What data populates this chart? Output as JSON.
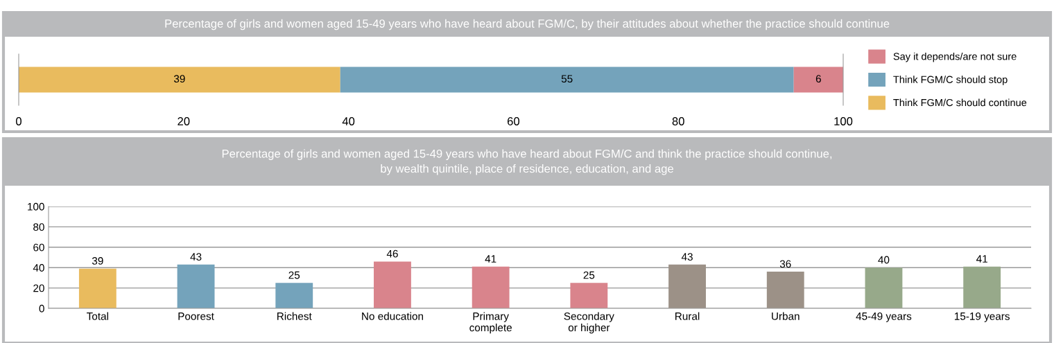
{
  "chart_data": [
    {
      "type": "bar",
      "title": "Percentage of girls and women aged 15-49 years who have heard about FGM/C, by their attitudes about whether the practice should continue",
      "orientation": "horizontal",
      "stacked": true,
      "categories": [
        null
      ],
      "series": [
        {
          "name": "Think FGM/C should continue",
          "color": "#e9bb5e",
          "values": [
            39
          ]
        },
        {
          "name": "Think FGM/C should stop",
          "color": "#74a3bb",
          "values": [
            55
          ]
        },
        {
          "name": "Say it depends/are not sure",
          "color": "#d9848c",
          "values": [
            6
          ]
        }
      ],
      "xlim": [
        0,
        100
      ],
      "xticks": [
        0,
        20,
        40,
        60,
        80,
        100
      ],
      "data_labels": true,
      "legend": "right"
    },
    {
      "type": "bar",
      "title": "Percentage of girls and women aged 15-49 years who have heard about FGM/C and think the practice should continue,\nby wealth quintile, place of residence, education, and age",
      "categories": [
        "Total",
        "Poorest",
        "Richest",
        "No education",
        "Primary\ncomplete",
        "Secondary\nor higher",
        "Rural",
        "Urban",
        "45-49 years",
        "15-19 years"
      ],
      "values": [
        39,
        43,
        25,
        46,
        41,
        25,
        43,
        36,
        40,
        41
      ],
      "colors": [
        "#e9bb5e",
        "#74a3bb",
        "#74a3bb",
        "#d9848c",
        "#d9848c",
        "#d9848c",
        "#9c9187",
        "#9c9187",
        "#97a98a",
        "#97a98a"
      ],
      "ylim": [
        0,
        100
      ],
      "yticks": [
        0,
        20,
        40,
        60,
        80,
        100
      ],
      "grid": "y",
      "data_labels": true
    }
  ]
}
